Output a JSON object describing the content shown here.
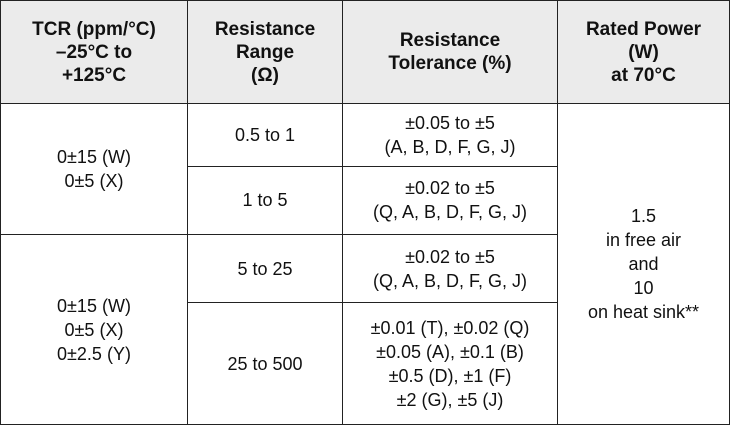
{
  "headers": {
    "tcr": [
      "TCR (ppm/°C)",
      "–25°C to",
      "+125°C"
    ],
    "resistance_range": [
      "Resistance",
      "Range",
      "(Ω)"
    ],
    "resistance_tolerance": [
      "Resistance",
      "Tolerance (%)"
    ],
    "rated_power": [
      "Rated Power",
      "(W)",
      "at 70°C"
    ]
  },
  "tcr_groups": [
    [
      "0±15 (W)",
      "0±5 (X)"
    ],
    [
      "0±15 (W)",
      "0±5 (X)",
      "0±2.5 (Y)"
    ]
  ],
  "rows": [
    {
      "range": "0.5 to 1",
      "tolerance": [
        "±0.05 to ±5",
        "(A, B, D, F, G, J)"
      ]
    },
    {
      "range": "1 to 5",
      "tolerance": [
        "±0.02 to ±5",
        "(Q, A, B, D, F, G, J)"
      ]
    },
    {
      "range": "5 to 25",
      "tolerance": [
        "±0.02 to ±5",
        "(Q, A, B, D, F, G, J)"
      ]
    },
    {
      "range": "25 to 500",
      "tolerance": [
        "±0.01 (T), ±0.02 (Q)",
        "±0.05 (A), ±0.1 (B)",
        "±0.5 (D), ±1 (F)",
        "±2 (G), ±5 (J)"
      ]
    }
  ],
  "rated_power": [
    "1.5",
    "in free air",
    "and",
    "10",
    "on heat sink**"
  ]
}
